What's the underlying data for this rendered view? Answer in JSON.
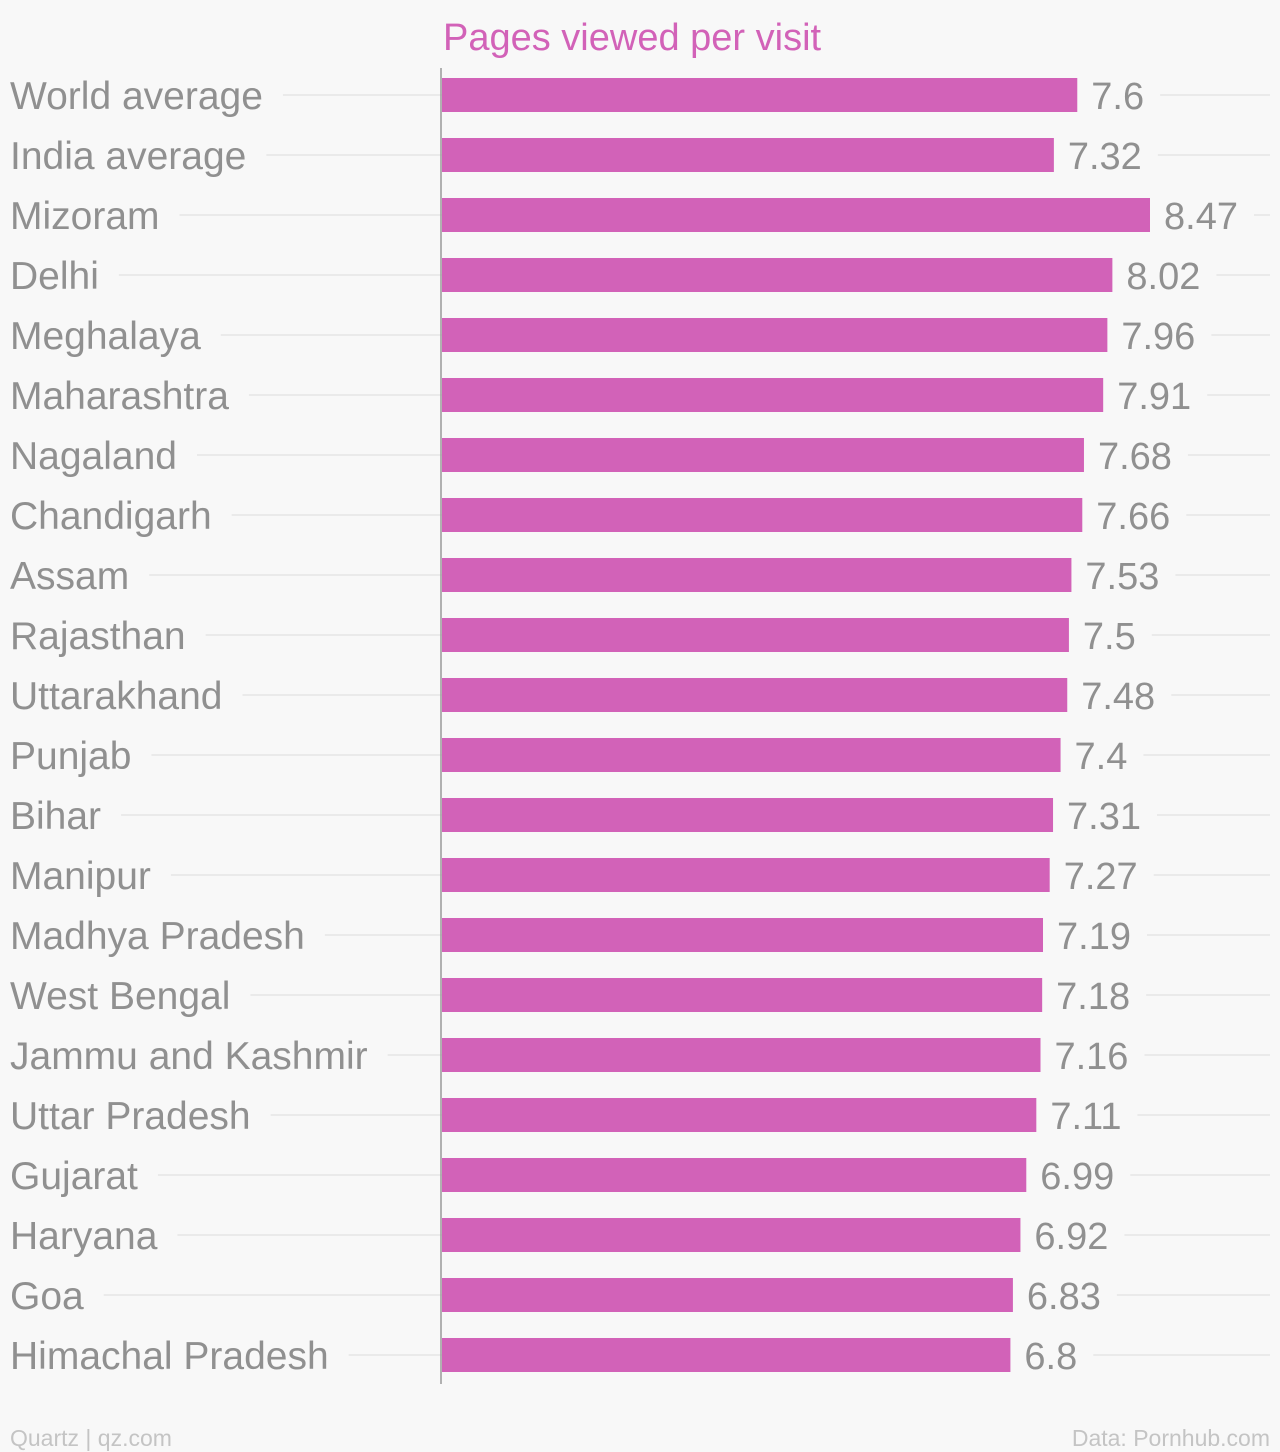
{
  "chart_data": {
    "type": "bar",
    "orientation": "horizontal",
    "title": "Pages viewed per visit",
    "xlabel": "",
    "ylabel": "",
    "xlim": [
      0,
      8.47
    ],
    "grid": true,
    "categories": [
      "World average",
      "India average",
      "Mizoram",
      "Delhi",
      "Meghalaya",
      "Maharashtra",
      "Nagaland",
      "Chandigarh",
      "Assam",
      "Rajasthan",
      "Uttarakhand",
      "Punjab",
      "Bihar",
      "Manipur",
      "Madhya Pradesh",
      "West Bengal",
      "Jammu and Kashmir",
      "Uttar Pradesh",
      "Gujarat",
      "Haryana",
      "Goa",
      "Himachal Pradesh"
    ],
    "values": [
      7.6,
      7.32,
      8.47,
      8.02,
      7.96,
      7.91,
      7.68,
      7.66,
      7.53,
      7.5,
      7.48,
      7.4,
      7.31,
      7.27,
      7.19,
      7.18,
      7.16,
      7.11,
      6.99,
      6.92,
      6.83,
      6.8
    ],
    "value_labels": [
      "7.6",
      "7.32",
      "8.47",
      "8.02",
      "7.96",
      "7.91",
      "7.68",
      "7.66",
      "7.53",
      "7.5",
      "7.48",
      "7.4",
      "7.31",
      "7.27",
      "7.19",
      "7.18",
      "7.16",
      "7.11",
      "6.99",
      "6.92",
      "6.83",
      "6.8"
    ],
    "bar_color": "#d262b8"
  },
  "footer": {
    "credit": "Quartz | qz.com",
    "source": "Data: Pornhub.com"
  }
}
